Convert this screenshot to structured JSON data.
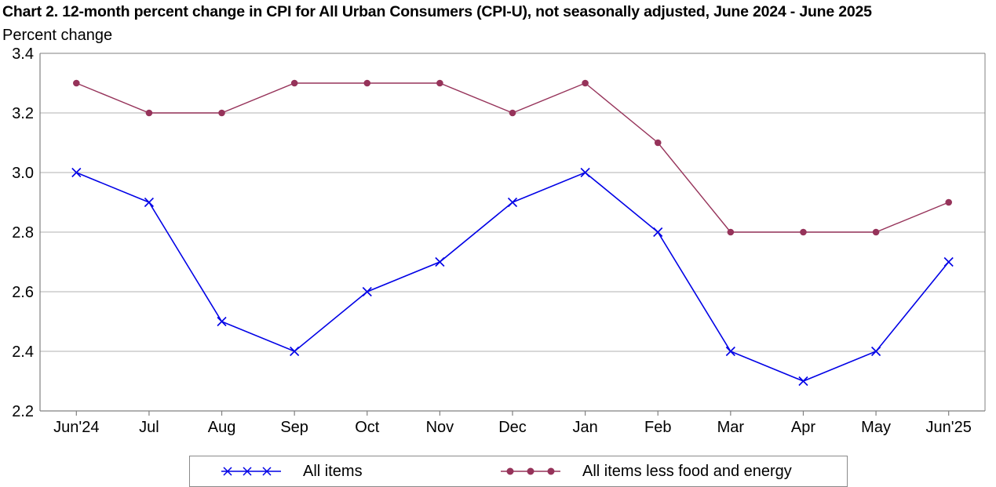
{
  "chart_data": {
    "type": "line",
    "title": "Chart 2. 12-month percent change in CPI for All Urban Consumers (CPI-U), not seasonally adjusted, June 2024 - June 2025",
    "xlabel": "",
    "ylabel": "Percent change",
    "ylim": [
      2.2,
      3.4
    ],
    "yticks": [
      "2.2",
      "2.4",
      "2.6",
      "2.8",
      "3.0",
      "3.2",
      "3.4"
    ],
    "grid": true,
    "legend_position": "bottom",
    "categories": [
      "Jun'24",
      "Jul",
      "Aug",
      "Sep",
      "Oct",
      "Nov",
      "Dec",
      "Jan",
      "Feb",
      "Mar",
      "Apr",
      "May",
      "Jun'25"
    ],
    "series": [
      {
        "name": "All items",
        "color": "#0000e6",
        "marker": "x",
        "values": [
          3.0,
          2.9,
          2.5,
          2.4,
          2.6,
          2.7,
          2.9,
          3.0,
          2.8,
          2.4,
          2.3,
          2.4,
          2.7
        ]
      },
      {
        "name": "All items less food and energy",
        "color": "#96335a",
        "marker": "circle",
        "values": [
          3.3,
          3.2,
          3.2,
          3.3,
          3.3,
          3.3,
          3.2,
          3.3,
          3.1,
          2.8,
          2.8,
          2.8,
          2.9
        ]
      }
    ]
  }
}
